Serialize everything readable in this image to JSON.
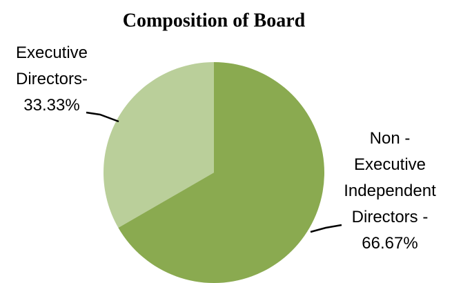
{
  "chart_data": {
    "type": "pie",
    "title": "Composition of Board",
    "categories": [
      "Executive Directors-",
      "Non - Executive Independent Directors -"
    ],
    "values": [
      33.33,
      66.67
    ],
    "value_labels": [
      "33.33%",
      "66.67%"
    ],
    "colors": [
      "#bacf9a",
      "#8aaa50"
    ]
  }
}
